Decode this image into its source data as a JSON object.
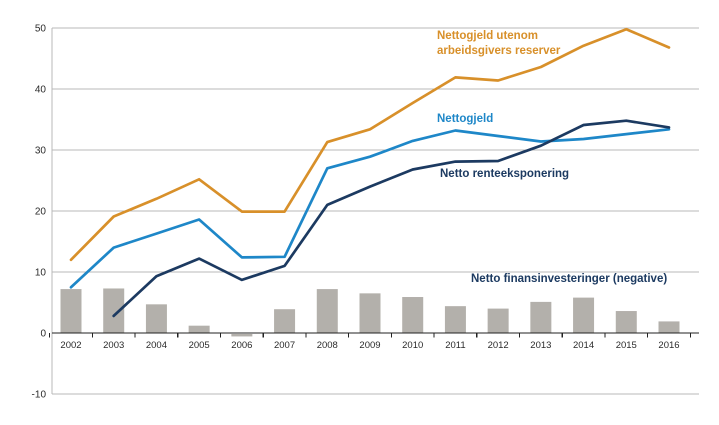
{
  "page": {
    "background_color": "#FFFFFF",
    "gridline_color": "#B8B8B8",
    "axis_line_color": "#222222",
    "axis_text_color": "#2B2B2B"
  },
  "annotations": {
    "utenom_line1": "Nettogjeld utenom",
    "utenom_line2": "arbeidsgivers reserver",
    "nettogjeld": "Nettogjeld",
    "renteeksponering": "Netto renteeksponering",
    "finansinvesteringer": "Netto finansinvesteringer (negative)"
  },
  "chart_data": {
    "type": "combo",
    "subtype": "line+bar",
    "categories": [
      "2002",
      "2003",
      "2004",
      "2005",
      "2006",
      "2007",
      "2008",
      "2009",
      "2010",
      "2011",
      "2012",
      "2013",
      "2014",
      "2015",
      "2016"
    ],
    "series": [
      {
        "name": "Nettogjeld utenom arbeidsgivers reserver",
        "kind": "line",
        "color": "#D8902A",
        "values": [
          12.0,
          19.1,
          22.0,
          25.2,
          19.9,
          19.9,
          31.3,
          33.4,
          37.7,
          41.9,
          41.4,
          43.6,
          47.1,
          49.8,
          46.8
        ]
      },
      {
        "name": "Nettogjeld",
        "kind": "line",
        "color": "#1E87C8",
        "values": [
          7.5,
          14.0,
          16.3,
          18.6,
          12.4,
          12.5,
          27.0,
          28.9,
          31.5,
          33.2,
          32.3,
          31.4,
          31.8,
          32.6,
          33.4
        ]
      },
      {
        "name": "Netto renteeksponering",
        "kind": "line",
        "color": "#1C3A61",
        "values": [
          null,
          2.8,
          9.3,
          12.2,
          8.7,
          11.0,
          21.0,
          24.0,
          26.8,
          28.1,
          28.2,
          30.7,
          34.1,
          34.8,
          33.7
        ]
      },
      {
        "name": "Netto finansinvesteringer (negative)",
        "kind": "bar",
        "color": "#B3B0AB",
        "values": [
          7.2,
          7.3,
          4.7,
          1.2,
          -0.4,
          3.9,
          7.2,
          6.5,
          5.9,
          4.4,
          4.0,
          5.1,
          5.8,
          3.6,
          1.9
        ]
      }
    ],
    "title": "",
    "xlabel": "",
    "ylabel": "",
    "ylim": [
      -10,
      50
    ],
    "yticks": [
      -10,
      0,
      10,
      20,
      30,
      40,
      50
    ],
    "grid": true,
    "legend": "inline-colored-labels"
  }
}
